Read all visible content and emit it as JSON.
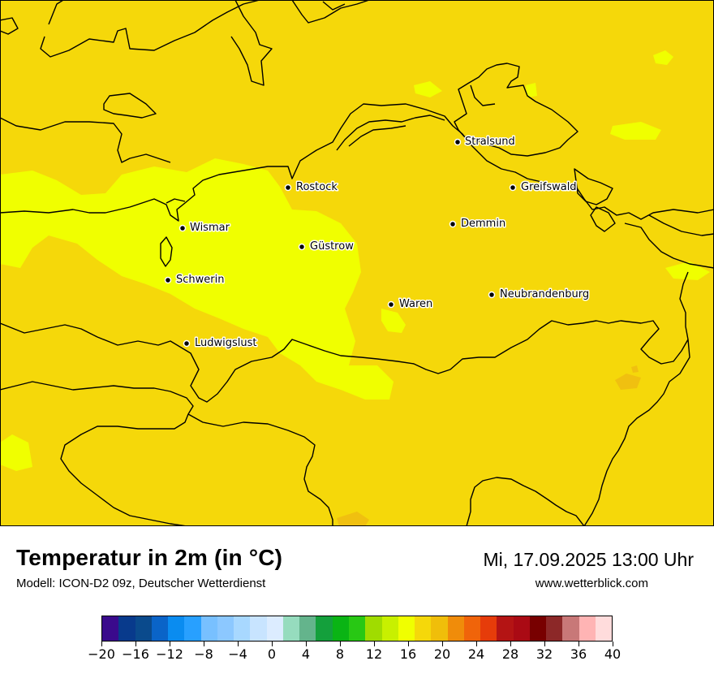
{
  "map": {
    "background_color": "#f5d80a",
    "warm_zone_color": "#f0ff00",
    "hot_spot_color": "#f0c010",
    "coastline_color": "#000000",
    "cities": [
      {
        "name": "Stralsund"
      },
      {
        "name": "Rostock"
      },
      {
        "name": "Greifswald"
      },
      {
        "name": "Wismar"
      },
      {
        "name": "Demmin"
      },
      {
        "name": "Güstrow"
      },
      {
        "name": "Schwerin"
      },
      {
        "name": "Neubrandenburg"
      },
      {
        "name": "Waren"
      },
      {
        "name": "Ludwigslust"
      }
    ]
  },
  "footer": {
    "title": "Temperatur in 2m (in °C)",
    "model": "Modell: ICON-D2 09z, Deutscher Wetterdienst",
    "datetime": "Mi, 17.09.2025 13:00 Uhr",
    "website": "www.wetterblick.com"
  },
  "legend": {
    "tick_labels": [
      "−20",
      "−16",
      "−12",
      "−8",
      "−4",
      "0",
      "4",
      "8",
      "12",
      "16",
      "20",
      "24",
      "28",
      "32",
      "36",
      "40"
    ],
    "colors": [
      "#3a0a8c",
      "#083a8c",
      "#0a4a8c",
      "#0a64c8",
      "#0a8cf0",
      "#28a0ff",
      "#78c0ff",
      "#8cc8ff",
      "#a8d8ff",
      "#c8e4ff",
      "#dcecff",
      "#96dcbe",
      "#64b48c",
      "#14a03c",
      "#0ab414",
      "#28c814",
      "#a0dc00",
      "#c8f000",
      "#f0ff00",
      "#f5d80a",
      "#f0be0a",
      "#f08c0a",
      "#f0640a",
      "#e63c0a",
      "#b41414",
      "#aa0a14",
      "#780000",
      "#8c2828",
      "#c87878",
      "#ffb4b4",
      "#ffdcdc"
    ]
  }
}
